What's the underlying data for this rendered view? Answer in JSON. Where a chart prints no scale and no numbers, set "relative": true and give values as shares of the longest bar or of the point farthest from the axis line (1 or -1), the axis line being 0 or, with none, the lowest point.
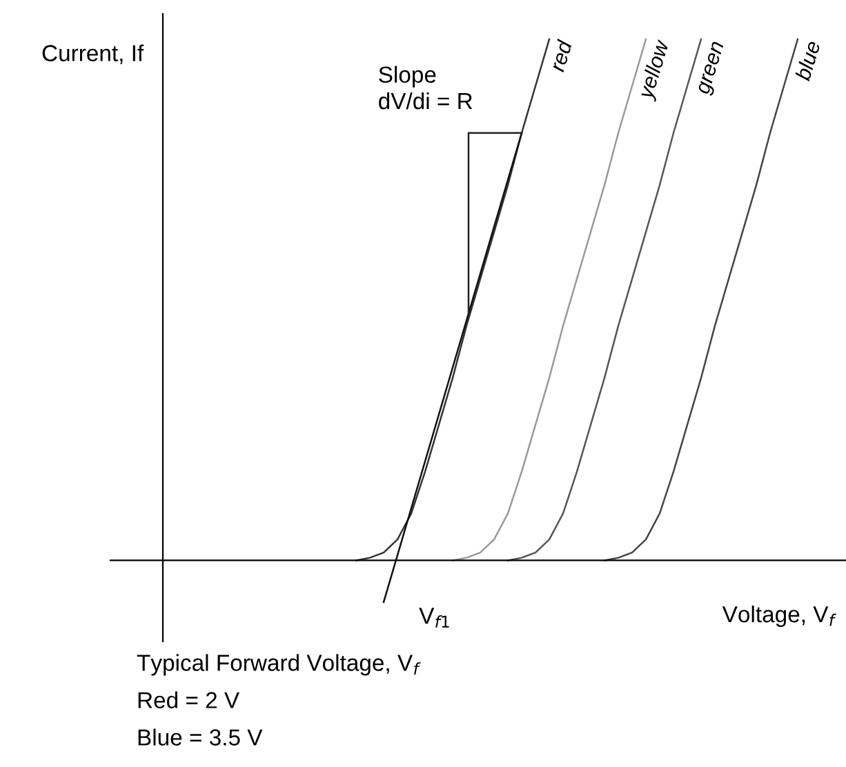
{
  "chart_data": {
    "type": "line",
    "relative": true,
    "ylabel": "Current, If",
    "xlabel": "Voltage, V$_{f}$",
    "tick_labels": false,
    "categories": [
      null,
      null,
      null,
      null,
      null,
      null,
      null,
      null,
      null,
      null,
      null,
      null,
      null,
      null,
      null,
      null,
      null,
      null,
      null,
      null,
      null,
      null,
      null,
      null,
      null,
      null,
      null,
      null,
      null,
      null,
      null,
      null,
      null,
      null,
      null,
      null,
      null,
      null,
      null,
      null,
      null,
      null,
      null,
      null,
      null,
      null,
      null
    ],
    "series": [
      {
        "name": "red",
        "color": "#333333",
        "values": [
          null,
          null,
          null,
          null,
          null,
          null,
          null,
          null,
          null,
          null,
          null,
          null,
          null,
          null,
          0,
          0.005,
          0.015,
          0.04,
          0.09,
          0.17,
          0.26,
          0.35,
          0.45,
          0.54,
          0.63,
          0.72,
          0.82,
          0.91,
          1.0,
          null,
          null,
          null,
          null,
          null,
          null,
          null,
          null,
          null,
          null,
          null,
          null,
          null,
          null,
          null,
          null,
          null,
          null
        ]
      },
      {
        "name": "yellow",
        "color": "#999999",
        "values": [
          null,
          null,
          null,
          null,
          null,
          null,
          null,
          null,
          null,
          null,
          null,
          null,
          null,
          null,
          null,
          null,
          null,
          null,
          null,
          null,
          null,
          0,
          0.005,
          0.015,
          0.04,
          0.09,
          0.17,
          0.26,
          0.35,
          0.45,
          0.54,
          0.63,
          0.72,
          0.82,
          0.91,
          1.0,
          null,
          null,
          null,
          null,
          null,
          null,
          null,
          null,
          null,
          null,
          null
        ]
      },
      {
        "name": "green",
        "color": "#555555",
        "values": [
          null,
          null,
          null,
          null,
          null,
          null,
          null,
          null,
          null,
          null,
          null,
          null,
          null,
          null,
          null,
          null,
          null,
          null,
          null,
          null,
          null,
          null,
          null,
          null,
          null,
          0,
          0.005,
          0.015,
          0.04,
          0.09,
          0.17,
          0.26,
          0.35,
          0.45,
          0.54,
          0.63,
          0.72,
          0.82,
          0.91,
          1.0,
          null,
          null,
          null,
          null,
          null,
          null,
          null
        ]
      },
      {
        "name": "blue",
        "color": "#444444",
        "values": [
          null,
          null,
          null,
          null,
          null,
          null,
          null,
          null,
          null,
          null,
          null,
          null,
          null,
          null,
          null,
          null,
          null,
          null,
          null,
          null,
          null,
          null,
          null,
          null,
          null,
          null,
          null,
          null,
          null,
          null,
          null,
          null,
          0,
          0.005,
          0.015,
          0.04,
          0.09,
          0.17,
          0.26,
          0.35,
          0.45,
          0.54,
          0.63,
          0.72,
          0.82,
          0.91,
          1.0
        ]
      },
      {
        "type": "line",
        "color": "#111111",
        "values": [
          null,
          null,
          null,
          null,
          null,
          null,
          null,
          null,
          null,
          null,
          null,
          null,
          null,
          null,
          null,
          null,
          -0.08,
          0.01,
          0.1,
          0.19,
          0.28,
          0.37,
          0.46,
          0.55,
          0.64,
          0.73,
          0.82,
          null,
          null,
          null,
          null,
          null,
          null,
          null,
          null,
          null,
          null,
          null,
          null,
          null,
          null,
          null,
          null,
          null,
          null,
          null,
          null
        ]
      }
    ],
    "annotations": [
      "V$_{f1}$",
      "Slope\ndV/di = R",
      "Typical Forward Voltage, V$_{f}$",
      "Red = 2 V",
      "Blue = 3.5 V"
    ]
  }
}
